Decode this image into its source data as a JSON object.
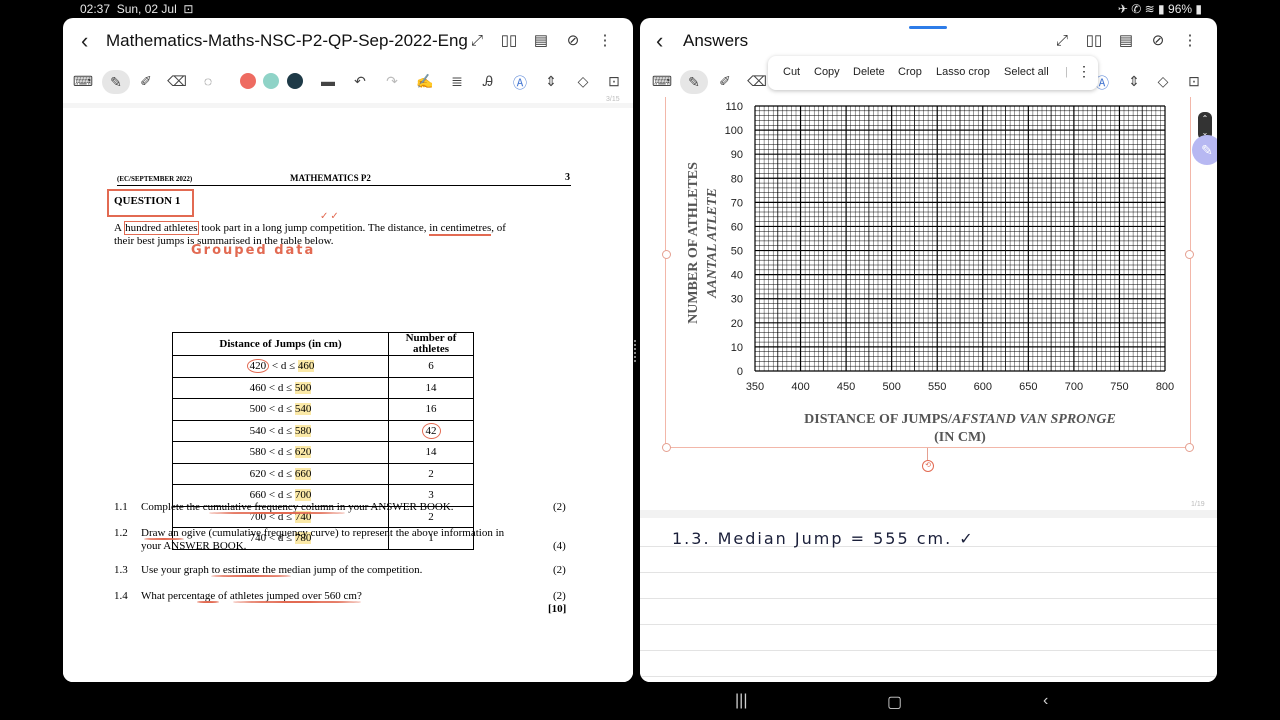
{
  "status_bar": {
    "time": "02:37",
    "date": "Sun, 02 Jul",
    "battery": "96%"
  },
  "left_pane": {
    "title": "Mathematics-Maths-NSC-P2-QP-Sep-2022-Eng",
    "page_counter": "3/15",
    "doc": {
      "header_left": "(EC/SEPTEMBER 2022)",
      "header_center": "MATHEMATICS P2",
      "page_number": "3",
      "question_title": "QUESTION 1",
      "intro_a": "A ",
      "intro_b": "hundred athletes",
      "intro_c": " took part in a long jump competition. The distance, ",
      "intro_d": "in centimetres",
      "intro_e": ", of",
      "intro_line2": "their best jumps is summarised in the table below.",
      "handwritten_note": "Grouped data",
      "table": {
        "col1_header": "Distance of Jumps (in cm)",
        "col2_header": "Number of athletes",
        "rows": [
          {
            "low": "420",
            "high": "460",
            "count": "6"
          },
          {
            "low": "460",
            "high": "500",
            "count": "14"
          },
          {
            "low": "500",
            "high": "540",
            "count": "16"
          },
          {
            "low": "540",
            "high": "580",
            "count": "42"
          },
          {
            "low": "580",
            "high": "620",
            "count": "14"
          },
          {
            "low": "620",
            "high": "660",
            "count": "2"
          },
          {
            "low": "660",
            "high": "700",
            "count": "3"
          },
          {
            "low": "700",
            "high": "740",
            "count": "2"
          },
          {
            "low": "740",
            "high": "780",
            "count": "1"
          }
        ],
        "middle": " < d ≤ "
      },
      "questions": [
        {
          "num": "1.1",
          "text": "Complete the cumulative frequency column in your ANSWER BOOK.",
          "marks": "(2)"
        },
        {
          "num": "1.2",
          "text": "Draw an ogive (cumulative frequency curve) to represent the above information in",
          "text2": "your ANSWER BOOK.",
          "marks": "(4)"
        },
        {
          "num": "1.3",
          "text": "Use your graph to estimate the median jump of the competition.",
          "marks": "(2)"
        },
        {
          "num": "1.4",
          "text": "What percentage of athletes jumped over 560 cm?",
          "marks": "(2)"
        }
      ],
      "total": "[10]"
    }
  },
  "right_pane": {
    "title": "Answers",
    "context_menu": [
      "Cut",
      "Copy",
      "Delete",
      "Crop",
      "Lasso crop",
      "Select all"
    ],
    "page_counter": "1/19",
    "graph": {
      "y_ticks": [
        "110",
        "100",
        "90",
        "80",
        "70",
        "60",
        "50",
        "40",
        "30",
        "20",
        "10",
        "0"
      ],
      "x_ticks": [
        "350",
        "400",
        "450",
        "500",
        "550",
        "600",
        "650",
        "700",
        "750",
        "800"
      ],
      "ylabel_1": "NUMBER OF ATHLETES",
      "ylabel_2": "AANTAL ATLETE",
      "xlabel_1": "DISTANCE OF JUMPS/",
      "xlabel_2": "AFSTAND VAN SPRONGE",
      "xlabel_3": "(IN CM)",
      "rotate_handle": "⟲"
    },
    "handwritten_answer": "1.3. Median Jump = 555 cm. ✓"
  },
  "colors": {
    "annotation_red": "#e26a52",
    "highlight_yellow": "#fbe9a7",
    "pen_red": "#ee6b61",
    "pen_teal": "#8fd3c7",
    "pen_navy": "#1e3a47"
  }
}
